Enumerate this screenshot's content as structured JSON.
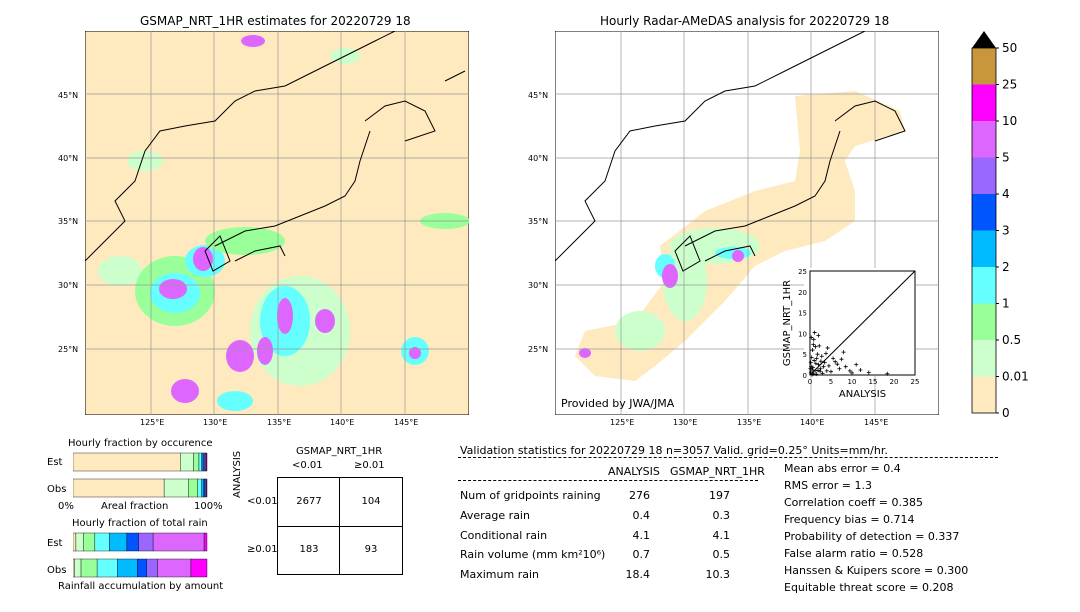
{
  "left_map": {
    "title": "GSMAP_NRT_1HR estimates for 20220729 18",
    "lat_labels": [
      "45°N",
      "40°N",
      "35°N",
      "30°N",
      "25°N"
    ],
    "lon_labels": [
      "125°E",
      "130°E",
      "135°E",
      "140°E",
      "145°E"
    ]
  },
  "right_map": {
    "title": "Hourly Radar-AMeDAS analysis for 20220729 18",
    "lat_labels": [
      "45°N",
      "40°N",
      "35°N",
      "30°N",
      "25°N"
    ],
    "lon_labels": [
      "125°E",
      "130°E",
      "135°E",
      "140°E",
      "145°E"
    ],
    "credit": "Provided by JWA/JMA"
  },
  "colorbar": {
    "labels": [
      "50",
      "25",
      "10",
      "5",
      "4",
      "3",
      "2",
      "1",
      "0.5",
      "0.01",
      "0"
    ],
    "colors": [
      "#c8963c",
      "#ff00ff",
      "#dd66ff",
      "#9966ff",
      "#0055ff",
      "#00bbff",
      "#66ffff",
      "#99ff99",
      "#ccffcc",
      "#ffe9bf"
    ]
  },
  "chart_data": [
    {
      "type": "scatter",
      "xlabel": "ANALYSIS",
      "ylabel": "GSMAP_NRT_1HR",
      "xlim": [
        0,
        25
      ],
      "ylim": [
        0,
        25
      ],
      "xticks": [
        "0",
        "5",
        "10",
        "15",
        "20",
        "25"
      ],
      "yticks": [
        "0",
        "5",
        "10",
        "15",
        "20",
        "25"
      ],
      "points": [
        [
          0.2,
          0.5
        ],
        [
          0.5,
          1.2
        ],
        [
          0.3,
          2.0
        ],
        [
          0.8,
          0.3
        ],
        [
          1.0,
          3.5
        ],
        [
          1.2,
          1.0
        ],
        [
          0.4,
          4.2
        ],
        [
          1.5,
          0.2
        ],
        [
          2.0,
          2.5
        ],
        [
          0.6,
          6.0
        ],
        [
          1.8,
          5.0
        ],
        [
          2.5,
          1.5
        ],
        [
          3.0,
          0.4
        ],
        [
          0.9,
          8.5
        ],
        [
          1.1,
          10.2
        ],
        [
          2.2,
          7.0
        ],
        [
          3.5,
          3.0
        ],
        [
          4.0,
          1.0
        ],
        [
          0.3,
          9.0
        ],
        [
          2.8,
          4.5
        ],
        [
          4.5,
          2.2
        ],
        [
          5.0,
          0.8
        ],
        [
          6.0,
          3.2
        ],
        [
          7.0,
          1.5
        ],
        [
          8.0,
          5.5
        ],
        [
          8.5,
          2.0
        ],
        [
          9.5,
          1.0
        ],
        [
          10.0,
          0.5
        ],
        [
          11.0,
          2.5
        ],
        [
          12.0,
          1.2
        ],
        [
          14.0,
          0.6
        ],
        [
          18.4,
          0.3
        ],
        [
          0.7,
          1.8
        ],
        [
          1.4,
          2.8
        ],
        [
          0.2,
          3.0
        ],
        [
          1.6,
          4.0
        ],
        [
          2.4,
          0.9
        ],
        [
          0.5,
          0.1
        ],
        [
          3.2,
          2.0
        ],
        [
          0.1,
          1.5
        ],
        [
          1.9,
          1.1
        ],
        [
          2.6,
          3.3
        ],
        [
          0.8,
          7.3
        ],
        [
          3.8,
          5.2
        ],
        [
          5.5,
          4.0
        ],
        [
          6.5,
          2.6
        ],
        [
          4.2,
          6.5
        ],
        [
          7.5,
          3.8
        ],
        [
          2.0,
          9.5
        ],
        [
          1.3,
          6.8
        ]
      ]
    },
    {
      "type": "bar",
      "title": "Hourly fraction by occurence",
      "categories": [
        "Est",
        "Obs"
      ],
      "xlabel": "Areal fraction",
      "xtick_labels": [
        "0%",
        "100%"
      ],
      "segment_colors": [
        "#ffe9bf",
        "#ccffcc",
        "#99ff99",
        "#66ffff",
        "#00bbff",
        "#0055ff",
        "#9966ff",
        "#dd66ff",
        "#ff00ff"
      ],
      "series_values": [
        [
          0.8,
          0.1,
          0.04,
          0.02,
          0.01,
          0.01,
          0.01,
          0.005,
          0.005
        ],
        [
          0.68,
          0.18,
          0.07,
          0.03,
          0.015,
          0.01,
          0.008,
          0.004,
          0.003
        ]
      ]
    },
    {
      "type": "bar",
      "title": "Hourly fraction of total rain",
      "categories": [
        "Est",
        "Obs"
      ],
      "xlabel": "Rainfall accumulation by amount",
      "segment_colors": [
        "#ffe9bf",
        "#ccffcc",
        "#99ff99",
        "#66ffff",
        "#00bbff",
        "#0055ff",
        "#9966ff",
        "#dd66ff",
        "#ff00ff",
        "#c8963c"
      ],
      "series_values": [
        [
          0.02,
          0.05,
          0.08,
          0.1,
          0.12,
          0.08,
          0.1,
          0.35,
          0.02,
          0.0
        ],
        [
          0.01,
          0.05,
          0.12,
          0.15,
          0.15,
          0.07,
          0.08,
          0.25,
          0.12,
          0.0
        ]
      ]
    }
  ],
  "contingency": {
    "title": "GSMAP_NRT_1HR",
    "col_labels": [
      "<0.01",
      "≥0.01"
    ],
    "row_axis": "ANALYSIS",
    "row_labels": [
      "<0.01",
      "≥0.01"
    ],
    "cells": [
      [
        "2677",
        "104"
      ],
      [
        "183",
        "93"
      ]
    ]
  },
  "validation": {
    "header": "Validation statistics for 20220729 18  n=3057 Valid. grid=0.25° Units=mm/hr.",
    "col_a": "ANALYSIS",
    "col_b": "GSMAP_NRT_1HR",
    "rows": [
      {
        "label": "Num of gridpoints raining",
        "a": "276",
        "b": "197"
      },
      {
        "label": "Average rain",
        "a": "0.4",
        "b": "0.3"
      },
      {
        "label": "Conditional rain",
        "a": "4.1",
        "b": "4.1"
      },
      {
        "label": "Rain volume (mm km²10⁶)",
        "a": "0.7",
        "b": "0.5"
      },
      {
        "label": "Maximum rain",
        "a": "18.4",
        "b": "10.3"
      }
    ],
    "scores": [
      "Mean abs error =    0.4",
      "RMS error =    1.3",
      "Correlation coeff =  0.385",
      "Frequency bias =  0.714",
      "Probability of detection =  0.337",
      "False alarm ratio =  0.528",
      "Hanssen & Kuipers score =  0.300",
      "Equitable threat score =  0.208"
    ]
  }
}
